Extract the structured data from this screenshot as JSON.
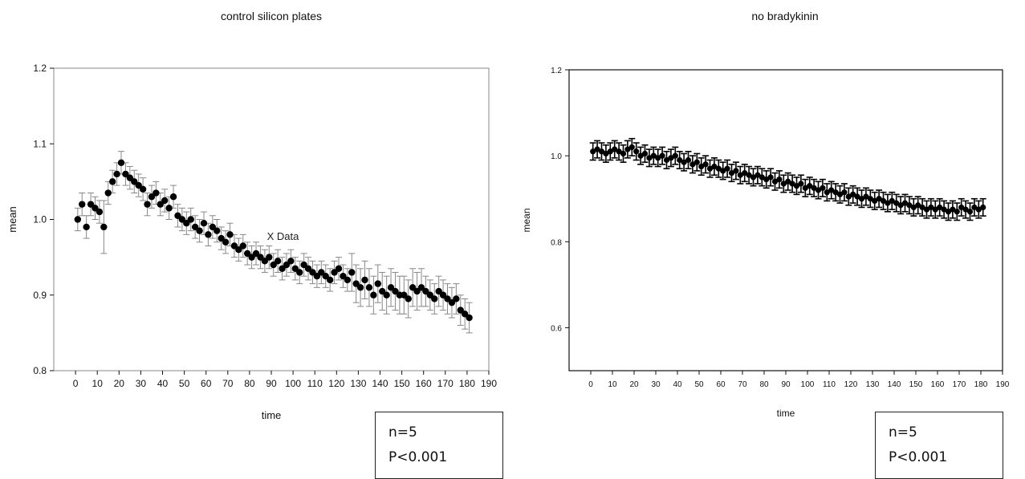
{
  "chart_data": [
    {
      "type": "scatter",
      "title": "control silicon plates",
      "xlabel": "time",
      "ylabel": "mean",
      "xlim": [
        -10,
        190
      ],
      "ylim": [
        0.8,
        1.2
      ],
      "xticks": [
        0,
        10,
        20,
        30,
        40,
        50,
        60,
        70,
        80,
        90,
        100,
        110,
        120,
        130,
        140,
        150,
        160,
        170,
        180,
        190
      ],
      "yticks": [
        0.8,
        0.9,
        1.0,
        1.1,
        1.2
      ],
      "ytick_labels": [
        "0.8",
        "0.9",
        "1.0",
        "1.1",
        "1.2"
      ],
      "annotation": "X Data",
      "marker_color": "#000000",
      "errorbar_color": "#888888",
      "grid": false,
      "stats": {
        "n": "n=5",
        "p": "P<0.001"
      },
      "series": [
        {
          "x": [
            1,
            3,
            5,
            7,
            9,
            11,
            13,
            15,
            17,
            19,
            21,
            23,
            25,
            27,
            29,
            31,
            33,
            35,
            37,
            39,
            41,
            43,
            45,
            47,
            49,
            51,
            53,
            55,
            57,
            59,
            61,
            63,
            65,
            67,
            69,
            71,
            73,
            75,
            77,
            79,
            81,
            83,
            85,
            87,
            89,
            91,
            93,
            95,
            97,
            99,
            101,
            103,
            105,
            107,
            109,
            111,
            113,
            115,
            117,
            119,
            121,
            123,
            125,
            127,
            129,
            131,
            133,
            135,
            137,
            139,
            141,
            143,
            145,
            147,
            149,
            151,
            153,
            155,
            157,
            159,
            161,
            163,
            165,
            167,
            169,
            171,
            173,
            175,
            177,
            179,
            181
          ],
          "y": [
            1.0,
            1.02,
            0.99,
            1.02,
            1.015,
            1.01,
            0.99,
            1.035,
            1.05,
            1.06,
            1.075,
            1.06,
            1.055,
            1.05,
            1.045,
            1.04,
            1.02,
            1.03,
            1.035,
            1.02,
            1.025,
            1.015,
            1.03,
            1.005,
            1.0,
            0.995,
            1.0,
            0.99,
            0.985,
            0.995,
            0.98,
            0.99,
            0.985,
            0.975,
            0.97,
            0.98,
            0.965,
            0.96,
            0.965,
            0.955,
            0.95,
            0.955,
            0.95,
            0.945,
            0.95,
            0.94,
            0.945,
            0.935,
            0.94,
            0.945,
            0.935,
            0.93,
            0.94,
            0.935,
            0.93,
            0.925,
            0.93,
            0.925,
            0.92,
            0.93,
            0.935,
            0.925,
            0.92,
            0.93,
            0.915,
            0.91,
            0.92,
            0.91,
            0.9,
            0.915,
            0.905,
            0.9,
            0.91,
            0.905,
            0.9,
            0.9,
            0.895,
            0.91,
            0.905,
            0.91,
            0.905,
            0.9,
            0.895,
            0.905,
            0.9,
            0.895,
            0.89,
            0.895,
            0.88,
            0.875,
            0.87
          ],
          "err": [
            0.015,
            0.015,
            0.015,
            0.015,
            0.015,
            0.015,
            0.035,
            0.015,
            0.015,
            0.015,
            0.015,
            0.015,
            0.015,
            0.015,
            0.015,
            0.015,
            0.015,
            0.015,
            0.015,
            0.015,
            0.015,
            0.015,
            0.015,
            0.015,
            0.015,
            0.015,
            0.015,
            0.015,
            0.015,
            0.015,
            0.015,
            0.015,
            0.015,
            0.015,
            0.015,
            0.015,
            0.015,
            0.015,
            0.015,
            0.015,
            0.015,
            0.015,
            0.015,
            0.015,
            0.015,
            0.015,
            0.015,
            0.015,
            0.015,
            0.015,
            0.015,
            0.015,
            0.015,
            0.015,
            0.015,
            0.015,
            0.015,
            0.015,
            0.015,
            0.015,
            0.015,
            0.015,
            0.015,
            0.025,
            0.025,
            0.025,
            0.025,
            0.025,
            0.025,
            0.025,
            0.025,
            0.025,
            0.025,
            0.025,
            0.025,
            0.025,
            0.025,
            0.025,
            0.025,
            0.025,
            0.02,
            0.02,
            0.02,
            0.02,
            0.02,
            0.02,
            0.02,
            0.02,
            0.02,
            0.02,
            0.02
          ]
        }
      ]
    },
    {
      "type": "scatter",
      "title": "no bradykinin",
      "xlabel": "time",
      "ylabel": "mean",
      "xlim": [
        -10,
        190
      ],
      "ylim": [
        0.5,
        1.2
      ],
      "xticks": [
        0,
        10,
        20,
        30,
        40,
        50,
        60,
        70,
        80,
        90,
        100,
        110,
        120,
        130,
        140,
        150,
        160,
        170,
        180,
        190
      ],
      "yticks": [
        0.6,
        0.8,
        1.0,
        1.2
      ],
      "ytick_labels": [
        "0.6",
        "0.8",
        "1.0",
        "1.2"
      ],
      "marker_color": "#000000",
      "errorbar_color": "#000000",
      "grid": false,
      "stats": {
        "n": "n=5",
        "p": "P<0.001"
      },
      "series": [
        {
          "x": [
            1,
            3,
            5,
            7,
            9,
            11,
            13,
            15,
            17,
            19,
            21,
            23,
            25,
            27,
            29,
            31,
            33,
            35,
            37,
            39,
            41,
            43,
            45,
            47,
            49,
            51,
            53,
            55,
            57,
            59,
            61,
            63,
            65,
            67,
            69,
            71,
            73,
            75,
            77,
            79,
            81,
            83,
            85,
            87,
            89,
            91,
            93,
            95,
            97,
            99,
            101,
            103,
            105,
            107,
            109,
            111,
            113,
            115,
            117,
            119,
            121,
            123,
            125,
            127,
            129,
            131,
            133,
            135,
            137,
            139,
            141,
            143,
            145,
            147,
            149,
            151,
            153,
            155,
            157,
            159,
            161,
            163,
            165,
            167,
            169,
            171,
            173,
            175,
            177,
            179,
            181
          ],
          "y": [
            1.01,
            1.015,
            1.01,
            1.005,
            1.01,
            1.015,
            1.01,
            1.005,
            1.015,
            1.02,
            1.01,
            1.0,
            1.005,
            0.995,
            1.0,
            0.995,
            1.0,
            0.99,
            0.995,
            1.0,
            0.99,
            0.985,
            0.99,
            0.98,
            0.985,
            0.975,
            0.98,
            0.97,
            0.975,
            0.97,
            0.965,
            0.97,
            0.96,
            0.965,
            0.955,
            0.96,
            0.955,
            0.95,
            0.955,
            0.95,
            0.945,
            0.95,
            0.94,
            0.945,
            0.935,
            0.94,
            0.935,
            0.93,
            0.935,
            0.925,
            0.93,
            0.925,
            0.92,
            0.925,
            0.915,
            0.92,
            0.915,
            0.91,
            0.915,
            0.905,
            0.91,
            0.905,
            0.9,
            0.905,
            0.9,
            0.895,
            0.9,
            0.895,
            0.89,
            0.895,
            0.89,
            0.885,
            0.89,
            0.885,
            0.88,
            0.885,
            0.88,
            0.875,
            0.88,
            0.875,
            0.88,
            0.875,
            0.87,
            0.875,
            0.87,
            0.88,
            0.875,
            0.87,
            0.88,
            0.875,
            0.88
          ],
          "err": [
            0.02,
            0.02,
            0.02,
            0.02,
            0.02,
            0.02,
            0.02,
            0.02,
            0.02,
            0.02,
            0.02,
            0.02,
            0.02,
            0.02,
            0.02,
            0.02,
            0.02,
            0.02,
            0.02,
            0.02,
            0.02,
            0.02,
            0.02,
            0.02,
            0.02,
            0.02,
            0.02,
            0.02,
            0.02,
            0.02,
            0.02,
            0.02,
            0.02,
            0.02,
            0.02,
            0.02,
            0.02,
            0.02,
            0.02,
            0.02,
            0.02,
            0.02,
            0.02,
            0.02,
            0.02,
            0.02,
            0.02,
            0.02,
            0.02,
            0.02,
            0.02,
            0.02,
            0.02,
            0.02,
            0.02,
            0.02,
            0.02,
            0.02,
            0.02,
            0.02,
            0.02,
            0.02,
            0.02,
            0.02,
            0.02,
            0.02,
            0.02,
            0.02,
            0.02,
            0.02,
            0.02,
            0.02,
            0.02,
            0.02,
            0.02,
            0.02,
            0.02,
            0.02,
            0.02,
            0.02,
            0.02,
            0.02,
            0.02,
            0.02,
            0.02,
            0.02,
            0.02,
            0.02,
            0.02,
            0.02,
            0.02
          ]
        }
      ]
    }
  ]
}
